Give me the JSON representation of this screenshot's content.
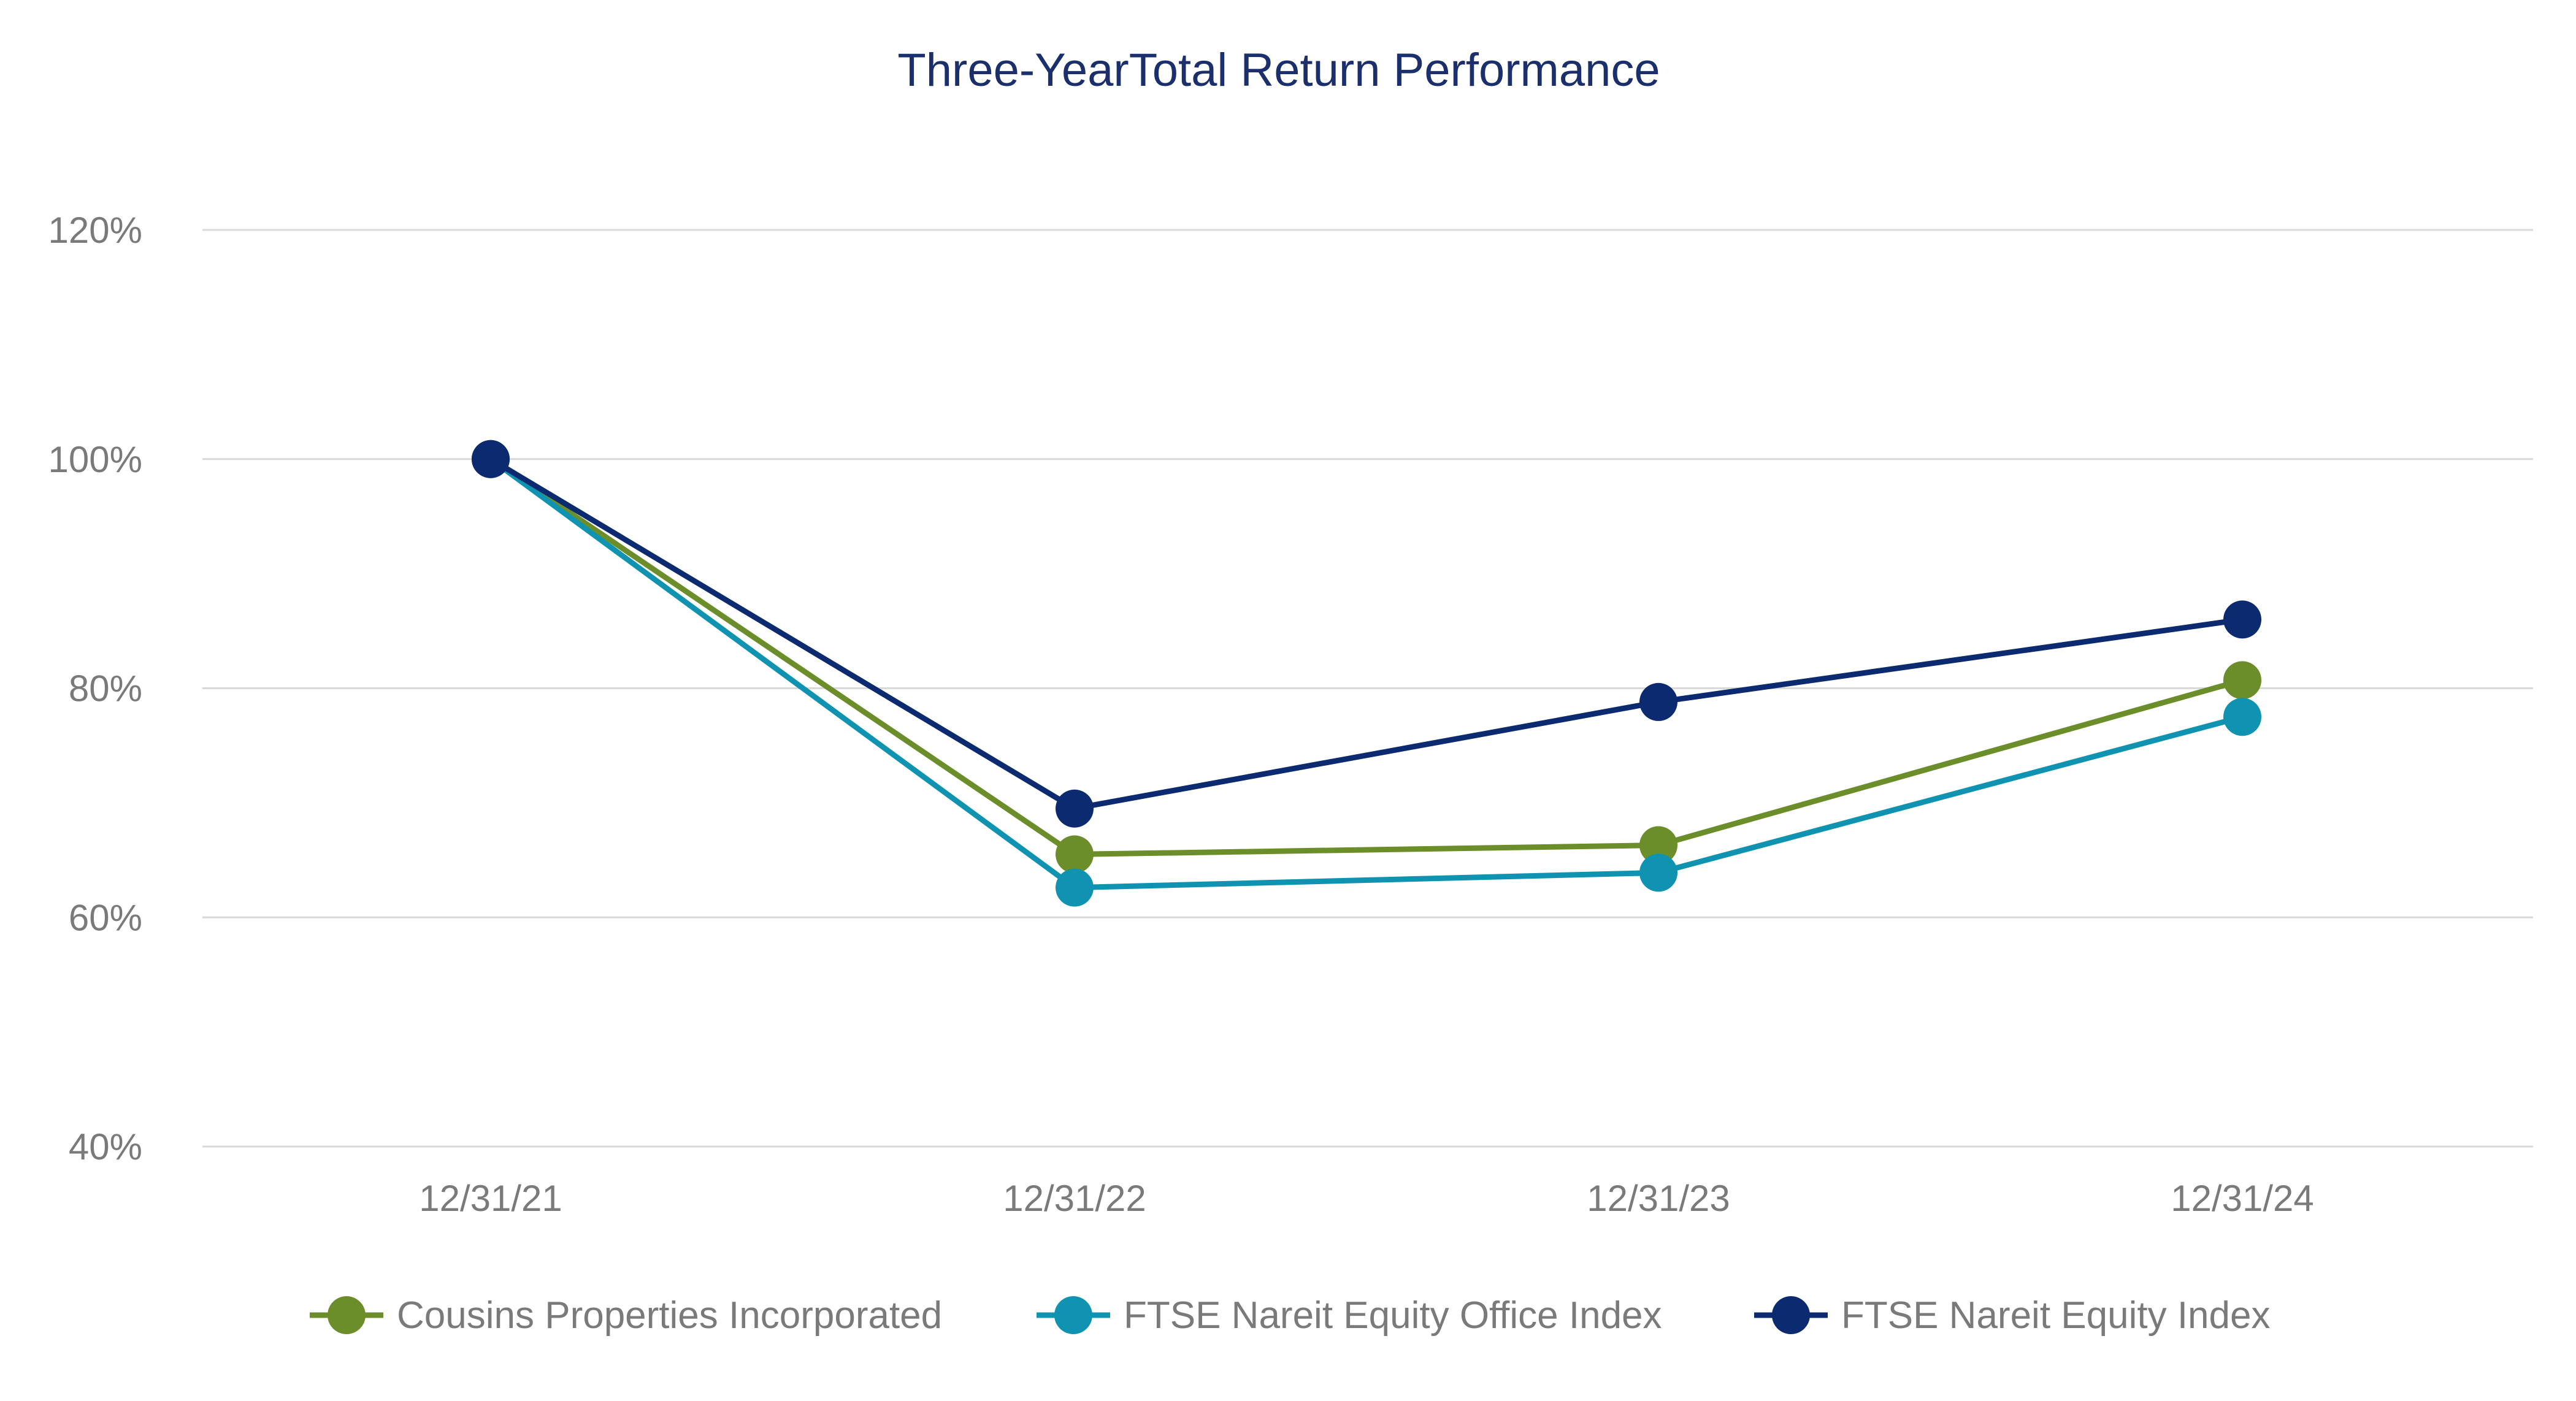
{
  "colors": {
    "title": "#1a2f6b",
    "grid": "#d9d9d9",
    "tick_text": "#7a7a7a",
    "legend_text": "#7a7a7a"
  },
  "chart_data": {
    "type": "line",
    "title": "Three-YearTotal Return Performance",
    "xlabel": "",
    "ylabel": "",
    "categories": [
      "12/31/21",
      "12/31/22",
      "12/31/23",
      "12/31/24"
    ],
    "ylim": [
      40,
      120
    ],
    "yticks": [
      40,
      60,
      80,
      100,
      120
    ],
    "ytick_labels": [
      "40%",
      "60%",
      "80%",
      "100%",
      "120%"
    ],
    "grid": true,
    "legend_position": "bottom",
    "series": [
      {
        "name": "Cousins Properties Incorporated",
        "color": "#6b8e2a",
        "values": [
          100,
          65.5,
          66.3,
          80.7
        ]
      },
      {
        "name": "FTSE Nareit Equity Office Index",
        "color": "#0f93b0",
        "values": [
          100,
          62.6,
          63.9,
          77.5
        ]
      },
      {
        "name": "FTSE Nareit Equity Index",
        "color": "#0b2a6f",
        "values": [
          100,
          69.5,
          78.8,
          86
        ]
      }
    ]
  }
}
